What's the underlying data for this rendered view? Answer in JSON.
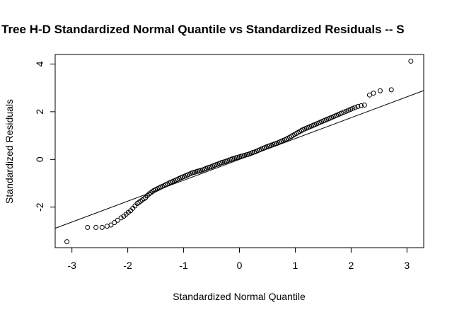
{
  "chart_data": {
    "type": "scatter",
    "title": "Tree H-D Standardized Normal Quantile vs Standardized Residuals -- S",
    "xlabel": "Standardized Normal Quantile",
    "ylabel": "Standardized Residuals",
    "xlim": [
      -3.3,
      3.3
    ],
    "ylim": [
      -3.7,
      4.4
    ],
    "xticks": [
      -3,
      -2,
      -1,
      0,
      1,
      2,
      3
    ],
    "yticks": [
      -2,
      0,
      2,
      4
    ],
    "xtick_labels": [
      "-3",
      "-2",
      "-1",
      "0",
      "1",
      "2",
      "3"
    ],
    "ytick_labels": [
      "-2",
      "0",
      "2",
      "4"
    ],
    "grid": false,
    "legend": "none",
    "reference_line": {
      "slope": 0.875,
      "intercept": 0.0
    },
    "series": [
      {
        "x": [
          -3.09,
          -2.72,
          -2.57,
          -2.46,
          -2.37,
          -2.3,
          -2.24,
          -2.18,
          -2.12,
          -2.07,
          -2.03,
          -1.99,
          -1.95,
          -1.91,
          -1.87,
          -1.83,
          -1.8,
          -1.77,
          -1.74,
          -1.71,
          -1.68,
          -1.65,
          -1.62,
          -1.59,
          -1.56,
          -1.53,
          -1.5,
          -1.47,
          -1.44,
          -1.41,
          -1.38,
          -1.35,
          -1.32,
          -1.29,
          -1.26,
          -1.23,
          -1.2,
          -1.17,
          -1.14,
          -1.11,
          -1.08,
          -1.05,
          -1.02,
          -0.99,
          -0.96,
          -0.93,
          -0.9,
          -0.87,
          -0.84,
          -0.81,
          -0.78,
          -0.75,
          -0.72,
          -0.69,
          -0.66,
          -0.63,
          -0.6,
          -0.57,
          -0.54,
          -0.51,
          -0.48,
          -0.45,
          -0.42,
          -0.39,
          -0.36,
          -0.33,
          -0.3,
          -0.27,
          -0.24,
          -0.21,
          -0.18,
          -0.15,
          -0.12,
          -0.09,
          -0.06,
          -0.03,
          0.0,
          0.03,
          0.06,
          0.09,
          0.12,
          0.15,
          0.18,
          0.21,
          0.24,
          0.27,
          0.3,
          0.33,
          0.36,
          0.39,
          0.42,
          0.45,
          0.48,
          0.51,
          0.54,
          0.57,
          0.6,
          0.63,
          0.66,
          0.69,
          0.72,
          0.75,
          0.78,
          0.81,
          0.84,
          0.87,
          0.9,
          0.93,
          0.96,
          0.99,
          1.02,
          1.05,
          1.08,
          1.11,
          1.14,
          1.17,
          1.2,
          1.23,
          1.26,
          1.29,
          1.32,
          1.35,
          1.38,
          1.41,
          1.44,
          1.47,
          1.5,
          1.53,
          1.56,
          1.59,
          1.62,
          1.65,
          1.68,
          1.71,
          1.74,
          1.77,
          1.8,
          1.83,
          1.87,
          1.91,
          1.95,
          1.99,
          2.03,
          2.07,
          2.12,
          2.18,
          2.24,
          2.33,
          2.4,
          2.52,
          2.72,
          3.07
        ],
        "y": [
          -3.45,
          -2.85,
          -2.85,
          -2.85,
          -2.8,
          -2.75,
          -2.65,
          -2.55,
          -2.45,
          -2.38,
          -2.3,
          -2.22,
          -2.15,
          -2.05,
          -1.95,
          -1.85,
          -1.8,
          -1.75,
          -1.7,
          -1.65,
          -1.6,
          -1.52,
          -1.45,
          -1.4,
          -1.35,
          -1.3,
          -1.27,
          -1.23,
          -1.2,
          -1.16,
          -1.13,
          -1.1,
          -1.06,
          -1.03,
          -0.99,
          -0.96,
          -0.93,
          -0.9,
          -0.87,
          -0.84,
          -0.8,
          -0.77,
          -0.74,
          -0.71,
          -0.68,
          -0.65,
          -0.62,
          -0.59,
          -0.56,
          -0.54,
          -0.52,
          -0.5,
          -0.48,
          -0.46,
          -0.44,
          -0.41,
          -0.38,
          -0.35,
          -0.33,
          -0.31,
          -0.28,
          -0.25,
          -0.22,
          -0.2,
          -0.17,
          -0.14,
          -0.12,
          -0.1,
          -0.08,
          -0.05,
          -0.02,
          0.0,
          0.03,
          0.05,
          0.07,
          0.09,
          0.11,
          0.13,
          0.15,
          0.17,
          0.19,
          0.21,
          0.23,
          0.26,
          0.29,
          0.31,
          0.34,
          0.37,
          0.4,
          0.43,
          0.46,
          0.49,
          0.52,
          0.55,
          0.57,
          0.6,
          0.62,
          0.65,
          0.67,
          0.7,
          0.73,
          0.76,
          0.79,
          0.82,
          0.85,
          0.89,
          0.93,
          0.97,
          1.01,
          1.05,
          1.09,
          1.13,
          1.17,
          1.21,
          1.25,
          1.28,
          1.31,
          1.34,
          1.37,
          1.4,
          1.43,
          1.46,
          1.49,
          1.52,
          1.55,
          1.58,
          1.61,
          1.64,
          1.67,
          1.7,
          1.73,
          1.76,
          1.79,
          1.82,
          1.85,
          1.88,
          1.91,
          1.94,
          1.98,
          2.02,
          2.06,
          2.1,
          2.14,
          2.18,
          2.22,
          2.25,
          2.28,
          2.7,
          2.78,
          2.88,
          2.92,
          4.12
        ]
      }
    ]
  }
}
